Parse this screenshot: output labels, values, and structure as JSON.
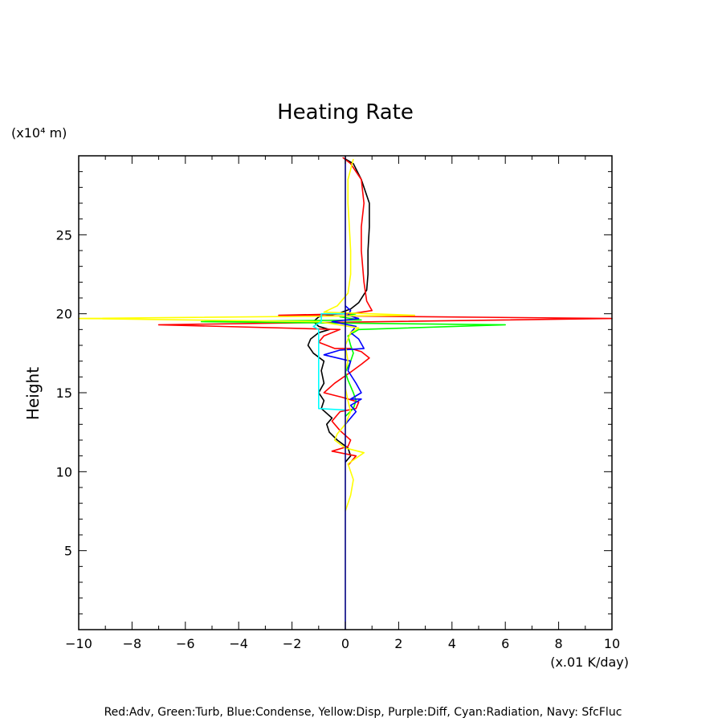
{
  "chart_data": {
    "type": "line",
    "title": "Heating Rate",
    "xlabel": "(x.01 K/day)",
    "ylabel": "Height",
    "y_unit": "(x10⁴ m)",
    "xlim": [
      -10,
      10
    ],
    "ylim": [
      0,
      30
    ],
    "xticks": [
      -10,
      -8,
      -6,
      -4,
      -2,
      0,
      2,
      4,
      6,
      8,
      10
    ],
    "xtick_labels": [
      "−10",
      "−8",
      "−6",
      "−4",
      "−2",
      "0",
      "2",
      "4",
      "6",
      "8",
      "10"
    ],
    "yticks": [
      5,
      10,
      15,
      20,
      25
    ],
    "ytick_labels": [
      "5",
      "10",
      "15",
      "20",
      "25"
    ],
    "grid": false,
    "caption": "Red:Adv, Green:Turb, Blue:Condense, Yellow:Disp, Purple:Diff, Cyan:Radiation, Navy: SfcFluc",
    "series": [
      {
        "color": "#000000",
        "points": [
          [
            0,
            10.6
          ],
          [
            0.2,
            11.0
          ],
          [
            0.1,
            11.5
          ],
          [
            -0.3,
            12.0
          ],
          [
            -0.6,
            12.5
          ],
          [
            -0.7,
            13.0
          ],
          [
            -0.5,
            13.4
          ],
          [
            -0.9,
            14.0
          ],
          [
            -0.8,
            14.5
          ],
          [
            -1.0,
            15.0
          ],
          [
            -0.8,
            15.6
          ],
          [
            -0.9,
            16.4
          ],
          [
            -0.8,
            17.0
          ],
          [
            -1.2,
            17.5
          ],
          [
            -1.4,
            18.0
          ],
          [
            -1.3,
            18.4
          ],
          [
            -1.0,
            18.8
          ],
          [
            -0.6,
            19.0
          ],
          [
            -1.0,
            19.2
          ],
          [
            -1.2,
            19.5
          ],
          [
            -1.0,
            19.8
          ],
          [
            -0.3,
            20.0
          ],
          [
            0.2,
            20.3
          ],
          [
            0.5,
            20.7
          ],
          [
            0.8,
            21.5
          ],
          [
            0.85,
            22.5
          ],
          [
            0.85,
            24.0
          ],
          [
            0.9,
            25.5
          ],
          [
            0.9,
            27.0
          ],
          [
            0.6,
            28.5
          ],
          [
            0.3,
            29.5
          ],
          [
            0,
            29.8
          ]
        ]
      },
      {
        "color": "#ff0000",
        "points": [
          [
            0.1,
            10.4
          ],
          [
            0.4,
            11.0
          ],
          [
            -0.5,
            11.3
          ],
          [
            0.1,
            11.6
          ],
          [
            0.2,
            12.0
          ],
          [
            -0.2,
            12.6
          ],
          [
            -0.5,
            13.2
          ],
          [
            -0.2,
            13.8
          ],
          [
            0.4,
            14.0
          ],
          [
            0.5,
            14.4
          ],
          [
            -0.1,
            14.7
          ],
          [
            -0.8,
            15.0
          ],
          [
            -0.4,
            15.6
          ],
          [
            0.2,
            16.3
          ],
          [
            0.6,
            16.8
          ],
          [
            0.9,
            17.2
          ],
          [
            0.6,
            17.6
          ],
          [
            0.2,
            17.8
          ],
          [
            -0.4,
            17.8
          ],
          [
            -1.0,
            18.2
          ],
          [
            -0.8,
            18.6
          ],
          [
            -0.2,
            19.0
          ],
          [
            -7.0,
            19.3
          ],
          [
            10,
            19.7
          ],
          [
            -2.5,
            19.9
          ],
          [
            0.2,
            20.0
          ],
          [
            1.0,
            20.2
          ],
          [
            0.8,
            20.8
          ],
          [
            0.7,
            22.0
          ],
          [
            0.6,
            24.0
          ],
          [
            0.6,
            25.5
          ],
          [
            0.7,
            27.0
          ],
          [
            0.6,
            28.5
          ],
          [
            0.2,
            29.5
          ],
          [
            -0.1,
            29.9
          ]
        ]
      },
      {
        "color": "#00ff00",
        "points": [
          [
            0,
            13.5
          ],
          [
            0.3,
            14.0
          ],
          [
            0.4,
            14.5
          ],
          [
            0.3,
            15.0
          ],
          [
            0.1,
            15.8
          ],
          [
            0.0,
            16.3
          ],
          [
            0.2,
            17.0
          ],
          [
            0.3,
            17.5
          ],
          [
            0.2,
            18.0
          ],
          [
            0.1,
            18.6
          ],
          [
            0.5,
            19.0
          ],
          [
            6.0,
            19.3
          ],
          [
            -5.4,
            19.5
          ],
          [
            0.6,
            19.6
          ],
          [
            -0.2,
            19.8
          ],
          [
            0.4,
            20.0
          ]
        ]
      },
      {
        "color": "#0000ff",
        "points": [
          [
            0,
            13.0
          ],
          [
            0.4,
            13.8
          ],
          [
            0.2,
            14.2
          ],
          [
            0.6,
            14.6
          ],
          [
            0.2,
            14.6
          ],
          [
            0.6,
            15.0
          ],
          [
            0.4,
            15.6
          ],
          [
            0.1,
            16.4
          ],
          [
            0.2,
            17.0
          ],
          [
            -0.8,
            17.4
          ],
          [
            -0.2,
            17.7
          ],
          [
            0.7,
            17.8
          ],
          [
            0.5,
            18.4
          ],
          [
            0.2,
            18.8
          ],
          [
            0.4,
            19.2
          ],
          [
            -0.5,
            19.5
          ],
          [
            0.5,
            19.7
          ],
          [
            0.1,
            19.9
          ],
          [
            0.2,
            20.2
          ],
          [
            0,
            20.5
          ]
        ]
      },
      {
        "color": "#ffff00",
        "points": [
          [
            0,
            7.5
          ],
          [
            0.2,
            8.5
          ],
          [
            0.3,
            9.5
          ],
          [
            0.1,
            10.5
          ],
          [
            0.7,
            11.2
          ],
          [
            0.0,
            11.5
          ],
          [
            -0.4,
            12.0
          ],
          [
            -0.3,
            12.4
          ],
          [
            0.0,
            13.0
          ],
          [
            0.2,
            13.8
          ],
          [
            0.1,
            14.5
          ],
          [
            0.0,
            15.3
          ],
          [
            0.0,
            16.4
          ],
          [
            0.1,
            17.0
          ],
          [
            0.0,
            18.0
          ],
          [
            0.2,
            18.8
          ],
          [
            0.5,
            19.1
          ],
          [
            -1.0,
            19.5
          ],
          [
            -10,
            19.7
          ],
          [
            2.6,
            19.9
          ],
          [
            -0.8,
            20.1
          ],
          [
            -0.3,
            20.5
          ],
          [
            0.1,
            21.3
          ],
          [
            0.2,
            22.5
          ],
          [
            0.2,
            24.0
          ],
          [
            0.15,
            25.5
          ],
          [
            0.1,
            27.0
          ],
          [
            0.1,
            28.5
          ],
          [
            0.3,
            29.8
          ]
        ]
      },
      {
        "color": "#00ffff",
        "points": [
          [
            0,
            13.9
          ],
          [
            -1.0,
            14.0
          ],
          [
            -1.0,
            16.5
          ],
          [
            -1.0,
            19.0
          ],
          [
            -1.2,
            19.2
          ],
          [
            -0.9,
            19.5
          ],
          [
            -0.9,
            20.0
          ],
          [
            -0.3,
            20.0
          ],
          [
            0,
            20.0
          ]
        ]
      },
      {
        "color": "#000080",
        "points": [
          [
            0,
            0
          ],
          [
            0,
            30
          ]
        ]
      }
    ]
  }
}
